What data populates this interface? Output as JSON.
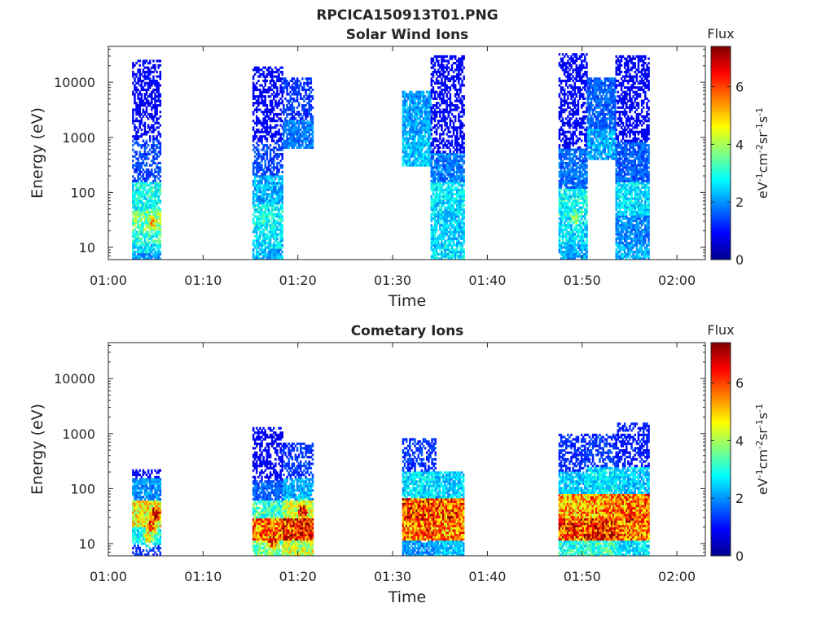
{
  "figure": {
    "title": "RPCICA150913T01.PNG"
  },
  "colorbar": {
    "label": "Flux",
    "unit_html": "eV⁻¹cm⁻²sr⁻¹s⁻¹",
    "ticks": [
      0,
      2,
      4,
      6
    ],
    "range": [
      0,
      7.4
    ],
    "colormap": "jet"
  },
  "chart_data": [
    {
      "type": "heatmap",
      "title": "Solar Wind Ions",
      "xlabel": "Time",
      "ylabel": "Energy (eV)",
      "x_ticks": [
        "01:00",
        "01:10",
        "01:20",
        "01:30",
        "01:40",
        "01:50",
        "02:00"
      ],
      "y_ticks": [
        "10",
        "100",
        "1000",
        "10000"
      ],
      "x_range_minutes": [
        0,
        63
      ],
      "y_scale": "log",
      "y_range": [
        6,
        45000
      ],
      "bursts": [
        {
          "start_min": 2.5,
          "end_min": 5.5,
          "profile": [
            [
              6,
              8,
              2
            ],
            [
              8,
              12,
              2.6
            ],
            [
              12,
              20,
              3.0
            ],
            [
              20,
              45,
              3.6
            ],
            [
              45,
              150,
              2.9
            ],
            [
              150,
              900,
              1.4
            ],
            [
              900,
              25000,
              0.9
            ]
          ],
          "hot": [
            {
              "t": 4.6,
              "e": 30,
              "v": 5.2
            }
          ]
        },
        {
          "start_min": 15.2,
          "end_min": 18.4,
          "profile": [
            [
              6,
              10,
              2.2
            ],
            [
              10,
              20,
              2.6
            ],
            [
              20,
              60,
              2.8
            ],
            [
              60,
              200,
              2.2
            ],
            [
              200,
              800,
              1.4
            ],
            [
              800,
              20000,
              0.9
            ]
          ],
          "hot": []
        },
        {
          "start_min": 18.4,
          "end_min": 21.6,
          "profile": [
            [
              600,
              2000,
              1.8
            ],
            [
              2000,
              12000,
              1.3
            ]
          ],
          "hot": []
        },
        {
          "start_min": 31.0,
          "end_min": 34.0,
          "profile": [
            [
              300,
              1200,
              2.4
            ],
            [
              1200,
              7000,
              2.1
            ]
          ],
          "hot": []
        },
        {
          "start_min": 34.0,
          "end_min": 37.5,
          "profile": [
            [
              6,
              12,
              2.6
            ],
            [
              12,
              40,
              2.4
            ],
            [
              40,
              150,
              2.6
            ],
            [
              150,
              500,
              1.8
            ],
            [
              500,
              30000,
              0.9
            ]
          ],
          "hot": []
        },
        {
          "start_min": 47.5,
          "end_min": 50.5,
          "profile": [
            [
              6,
              12,
              2.2
            ],
            [
              12,
              40,
              2.6
            ],
            [
              40,
              120,
              2.8
            ],
            [
              120,
              600,
              1.7
            ],
            [
              600,
              35000,
              0.9
            ]
          ],
          "hot": [
            {
              "t": 49.2,
              "e": 35,
              "v": 4.2
            }
          ]
        },
        {
          "start_min": 50.5,
          "end_min": 53.5,
          "profile": [
            [
              400,
              1500,
              2.2
            ],
            [
              1500,
              12000,
              1.6
            ]
          ],
          "hot": []
        },
        {
          "start_min": 53.5,
          "end_min": 57.0,
          "profile": [
            [
              6,
              12,
              2.2
            ],
            [
              12,
              40,
              1.9
            ],
            [
              40,
              150,
              2.6
            ],
            [
              150,
              800,
              1.6
            ],
            [
              800,
              30000,
              0.9
            ]
          ],
          "hot": []
        }
      ]
    },
    {
      "type": "heatmap",
      "title": "Cometary Ions",
      "xlabel": "Time",
      "ylabel": "Energy (eV)",
      "x_ticks": [
        "01:00",
        "01:10",
        "01:20",
        "01:30",
        "01:40",
        "01:50",
        "02:00"
      ],
      "y_ticks": [
        "10",
        "100",
        "1000",
        "10000"
      ],
      "x_range_minutes": [
        0,
        63
      ],
      "y_scale": "log",
      "y_range": [
        6,
        45000
      ],
      "bursts": [
        {
          "start_min": 2.5,
          "end_min": 5.5,
          "profile": [
            [
              6,
              10,
              1.2
            ],
            [
              10,
              20,
              2.8
            ],
            [
              20,
              60,
              4.6
            ],
            [
              60,
              150,
              2.0
            ],
            [
              150,
              220,
              0.9
            ]
          ],
          "hot": [
            {
              "t": 4.9,
              "e": 35,
              "v": 7.0
            },
            {
              "t": 4.5,
              "e": 22,
              "v": 6.2
            },
            {
              "t": 4.2,
              "e": 14,
              "v": 5.0
            }
          ]
        },
        {
          "start_min": 15.2,
          "end_min": 18.4,
          "profile": [
            [
              6,
              12,
              3.6
            ],
            [
              12,
              30,
              5.6
            ],
            [
              30,
              60,
              3.2
            ],
            [
              60,
              140,
              1.6
            ],
            [
              140,
              1300,
              0.9
            ]
          ],
          "hot": [
            {
              "t": 17.2,
              "e": 12,
              "v": 6.8
            },
            {
              "t": 16.8,
              "e": 20,
              "v": 6.0
            }
          ]
        },
        {
          "start_min": 18.4,
          "end_min": 21.6,
          "profile": [
            [
              6,
              12,
              4.2
            ],
            [
              12,
              30,
              6.2
            ],
            [
              30,
              60,
              4.2
            ],
            [
              60,
              150,
              2.2
            ],
            [
              150,
              700,
              1.3
            ]
          ],
          "hot": [
            {
              "t": 20.5,
              "e": 40,
              "v": 7.0
            },
            {
              "t": 19.8,
              "e": 20,
              "v": 6.6
            }
          ]
        },
        {
          "start_min": 31.0,
          "end_min": 34.5,
          "profile": [
            [
              6,
              12,
              2.0
            ],
            [
              12,
              30,
              5.6
            ],
            [
              30,
              70,
              6.0
            ],
            [
              70,
              200,
              2.6
            ],
            [
              200,
              800,
              1.3
            ]
          ],
          "hot": [
            {
              "t": 33.2,
              "e": 30,
              "v": 7.0
            }
          ]
        },
        {
          "start_min": 34.5,
          "end_min": 37.5,
          "profile": [
            [
              6,
              12,
              2.4
            ],
            [
              12,
              30,
              5.4
            ],
            [
              30,
              70,
              5.8
            ],
            [
              70,
              200,
              2.4
            ]
          ],
          "hot": [
            {
              "t": 36.0,
              "e": 30,
              "v": 6.8
            }
          ]
        },
        {
          "start_min": 47.5,
          "end_min": 50.5,
          "profile": [
            [
              6,
              12,
              3.0
            ],
            [
              12,
              30,
              6.0
            ],
            [
              30,
              80,
              5.2
            ],
            [
              80,
              200,
              2.4
            ],
            [
              200,
              1000,
              1.2
            ]
          ],
          "hot": [
            {
              "t": 49.0,
              "e": 20,
              "v": 7.0
            }
          ]
        },
        {
          "start_min": 50.5,
          "end_min": 53.5,
          "profile": [
            [
              6,
              12,
              3.2
            ],
            [
              12,
              30,
              6.2
            ],
            [
              30,
              80,
              5.4
            ],
            [
              80,
              250,
              2.6
            ],
            [
              250,
              1000,
              1.3
            ]
          ],
          "hot": [
            {
              "t": 52.0,
              "e": 25,
              "v": 7.0
            }
          ]
        },
        {
          "start_min": 53.5,
          "end_min": 57.0,
          "profile": [
            [
              6,
              12,
              2.6
            ],
            [
              12,
              30,
              5.6
            ],
            [
              30,
              80,
              5.6
            ],
            [
              80,
              250,
              2.4
            ],
            [
              250,
              1600,
              1.1
            ]
          ],
          "hot": [
            {
              "t": 55.0,
              "e": 30,
              "v": 7.0
            }
          ]
        }
      ]
    }
  ]
}
